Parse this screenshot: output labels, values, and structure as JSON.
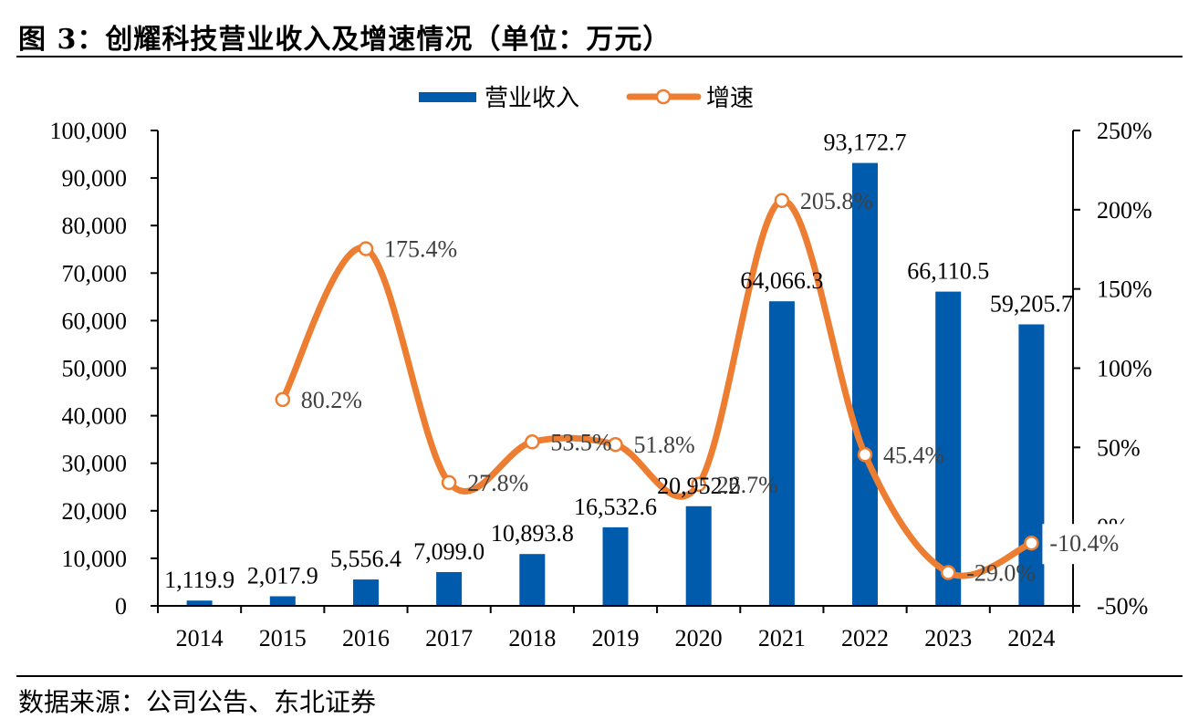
{
  "header": {
    "title": "图 3：创耀科技营业收入及增速情况（单位：万元）"
  },
  "footer": {
    "source": "数据来源：公司公告、东北证券"
  },
  "colors": {
    "bar": "#005BAC",
    "line": "#ED7D31",
    "marker_fill": "#FFFFFF",
    "axis": "#000000",
    "pct_label": "#404040"
  },
  "chart_data": {
    "type": "bar+line",
    "title": "创耀科技营业收入及增速情况（单位：万元）",
    "categories": [
      "2014",
      "2015",
      "2016",
      "2017",
      "2018",
      "2019",
      "2020",
      "2021",
      "2022",
      "2023",
      "2024"
    ],
    "series": [
      {
        "name": "营业收入",
        "type": "bar",
        "axis": "left",
        "values": [
          1119.9,
          2017.9,
          5556.4,
          7099.0,
          10893.8,
          16532.6,
          20952.2,
          64066.3,
          93172.7,
          66110.5,
          59205.7
        ],
        "labels": [
          "1,119.9",
          "2,017.9",
          "5,556.4",
          "7,099.0",
          "10,893.8",
          "16,532.6",
          "20,952.2",
          "64,066.3",
          "93,172.7",
          "66,110.5",
          "59,205.7"
        ]
      },
      {
        "name": "增速",
        "type": "line",
        "axis": "right",
        "smooth": true,
        "values": [
          null,
          80.2,
          175.4,
          27.8,
          53.5,
          51.8,
          26.7,
          205.8,
          45.4,
          -29.0,
          -10.4
        ],
        "labels": [
          "",
          "80.2%",
          "175.4%",
          "27.8%",
          "53.5%",
          "51.8%",
          "26.7%",
          "205.8%",
          "45.4%",
          "-29.0%",
          "-10.4%"
        ]
      }
    ],
    "left_axis": {
      "ylim": [
        0,
        100000
      ],
      "ticks": [
        0,
        10000,
        20000,
        30000,
        40000,
        50000,
        60000,
        70000,
        80000,
        90000,
        100000
      ],
      "tick_labels": [
        "0",
        "10,000",
        "20,000",
        "30,000",
        "40,000",
        "50,000",
        "60,000",
        "70,000",
        "80,000",
        "90,000",
        "100,000"
      ]
    },
    "right_axis": {
      "ylim": [
        -50,
        250
      ],
      "ticks": [
        -50,
        0,
        50,
        100,
        150,
        200,
        250
      ],
      "tick_labels": [
        "-50%",
        "0%",
        "50%",
        "100%",
        "150%",
        "200%",
        "250%"
      ]
    },
    "legend": {
      "position": "top-center",
      "entries": [
        {
          "label": "营业收入",
          "kind": "bar"
        },
        {
          "label": "增速",
          "kind": "line-marker"
        }
      ]
    },
    "grid": false
  }
}
